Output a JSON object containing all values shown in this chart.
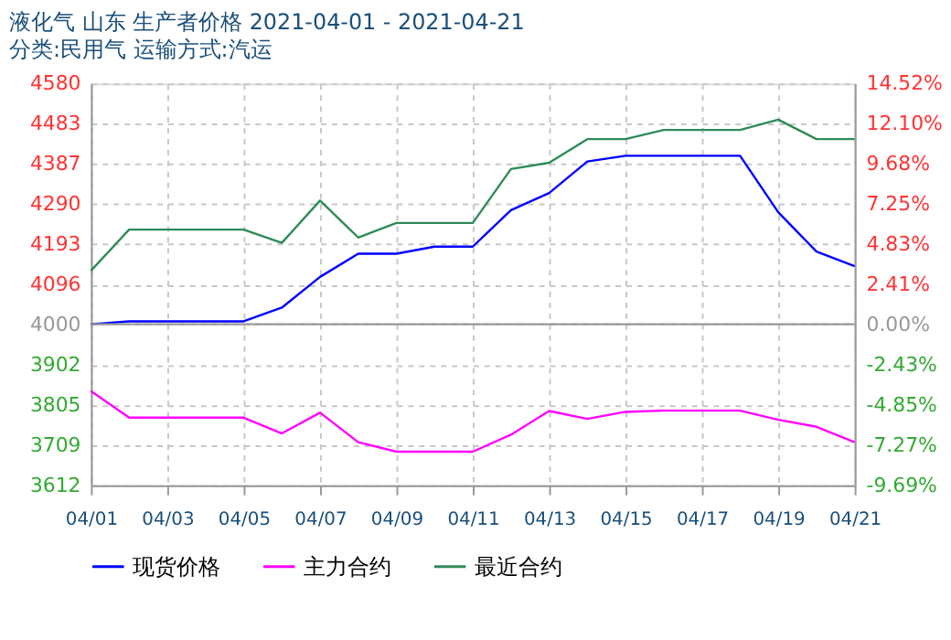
{
  "chart_data": {
    "type": "line",
    "title": "液化气 山东 生产者价格 2021-04-01 - 2021-04-21",
    "subtitle": "分类:民用气 运输方式:汽运",
    "x": [
      "2021-04-01",
      "2021-04-02",
      "2021-04-03",
      "2021-04-04",
      "2021-04-05",
      "2021-04-06",
      "2021-04-07",
      "2021-04-08",
      "2021-04-09",
      "2021-04-10",
      "2021-04-11",
      "2021-04-12",
      "2021-04-13",
      "2021-04-14",
      "2021-04-15",
      "2021-04-16",
      "2021-04-17",
      "2021-04-18",
      "2021-04-19",
      "2021-04-20",
      "2021-04-21"
    ],
    "xlim": [
      "2021-04-01",
      "2021-04-21"
    ],
    "xticks": [
      {
        "value": "2021-04-01",
        "label": "04/01"
      },
      {
        "value": "2021-04-03",
        "label": "04/03"
      },
      {
        "value": "2021-04-05",
        "label": "04/05"
      },
      {
        "value": "2021-04-07",
        "label": "04/07"
      },
      {
        "value": "2021-04-09",
        "label": "04/09"
      },
      {
        "value": "2021-04-11",
        "label": "04/11"
      },
      {
        "value": "2021-04-13",
        "label": "04/13"
      },
      {
        "value": "2021-04-15",
        "label": "04/15"
      },
      {
        "value": "2021-04-17",
        "label": "04/17"
      },
      {
        "value": "2021-04-19",
        "label": "04/19"
      },
      {
        "value": "2021-04-21",
        "label": "04/21"
      }
    ],
    "series": [
      {
        "name": "现货价格",
        "color": "#0000ff",
        "values": [
          4000,
          4007,
          4007,
          4007,
          4007,
          4040,
          4114,
          4170,
          4170,
          4187,
          4187,
          4275,
          4316,
          4392,
          4406,
          4406,
          4406,
          4406,
          4270,
          4175,
          4140
        ]
      },
      {
        "name": "主力合约",
        "color": "#ff00ff",
        "values": [
          3839,
          3775,
          3775,
          3775,
          3775,
          3737,
          3787,
          3716,
          3693,
          3693,
          3693,
          3734,
          3791,
          3772,
          3789,
          3792,
          3792,
          3792,
          3770,
          3753,
          3716
        ]
      },
      {
        "name": "最近合约",
        "color": "#2e8b57",
        "values": [
          4129,
          4228,
          4228,
          4228,
          4228,
          4196,
          4298,
          4209,
          4244,
          4244,
          4244,
          4374,
          4389,
          4446,
          4446,
          4468,
          4468,
          4468,
          4493,
          4446,
          4446
        ]
      }
    ],
    "ylim": [
      3612,
      4580
    ],
    "yticks": [
      3612,
      3709,
      3805,
      3902,
      4000,
      4096,
      4193,
      4290,
      4387,
      4483,
      4580
    ],
    "y2lim": [
      -9.69,
      14.52
    ],
    "y2ticks": [
      {
        "value": -9.69,
        "label": "-9.69%"
      },
      {
        "value": -7.27,
        "label": "-7.27%"
      },
      {
        "value": -4.85,
        "label": "-4.85%"
      },
      {
        "value": -2.43,
        "label": "-2.43%"
      },
      {
        "value": 0,
        "label": "0.00%"
      },
      {
        "value": 2.41,
        "label": "2.41%"
      },
      {
        "value": 4.83,
        "label": "4.83%"
      },
      {
        "value": 7.25,
        "label": "7.25%"
      },
      {
        "value": 9.68,
        "label": "9.68%"
      },
      {
        "value": 12.1,
        "label": "12.10%"
      },
      {
        "value": 14.52,
        "label": "14.52%"
      }
    ],
    "ref_lines": [
      {
        "axis": "y",
        "value": 4000,
        "color": "#999999"
      }
    ],
    "grid": true,
    "legend": "bottom",
    "marker": "none",
    "line_style": "solid"
  }
}
